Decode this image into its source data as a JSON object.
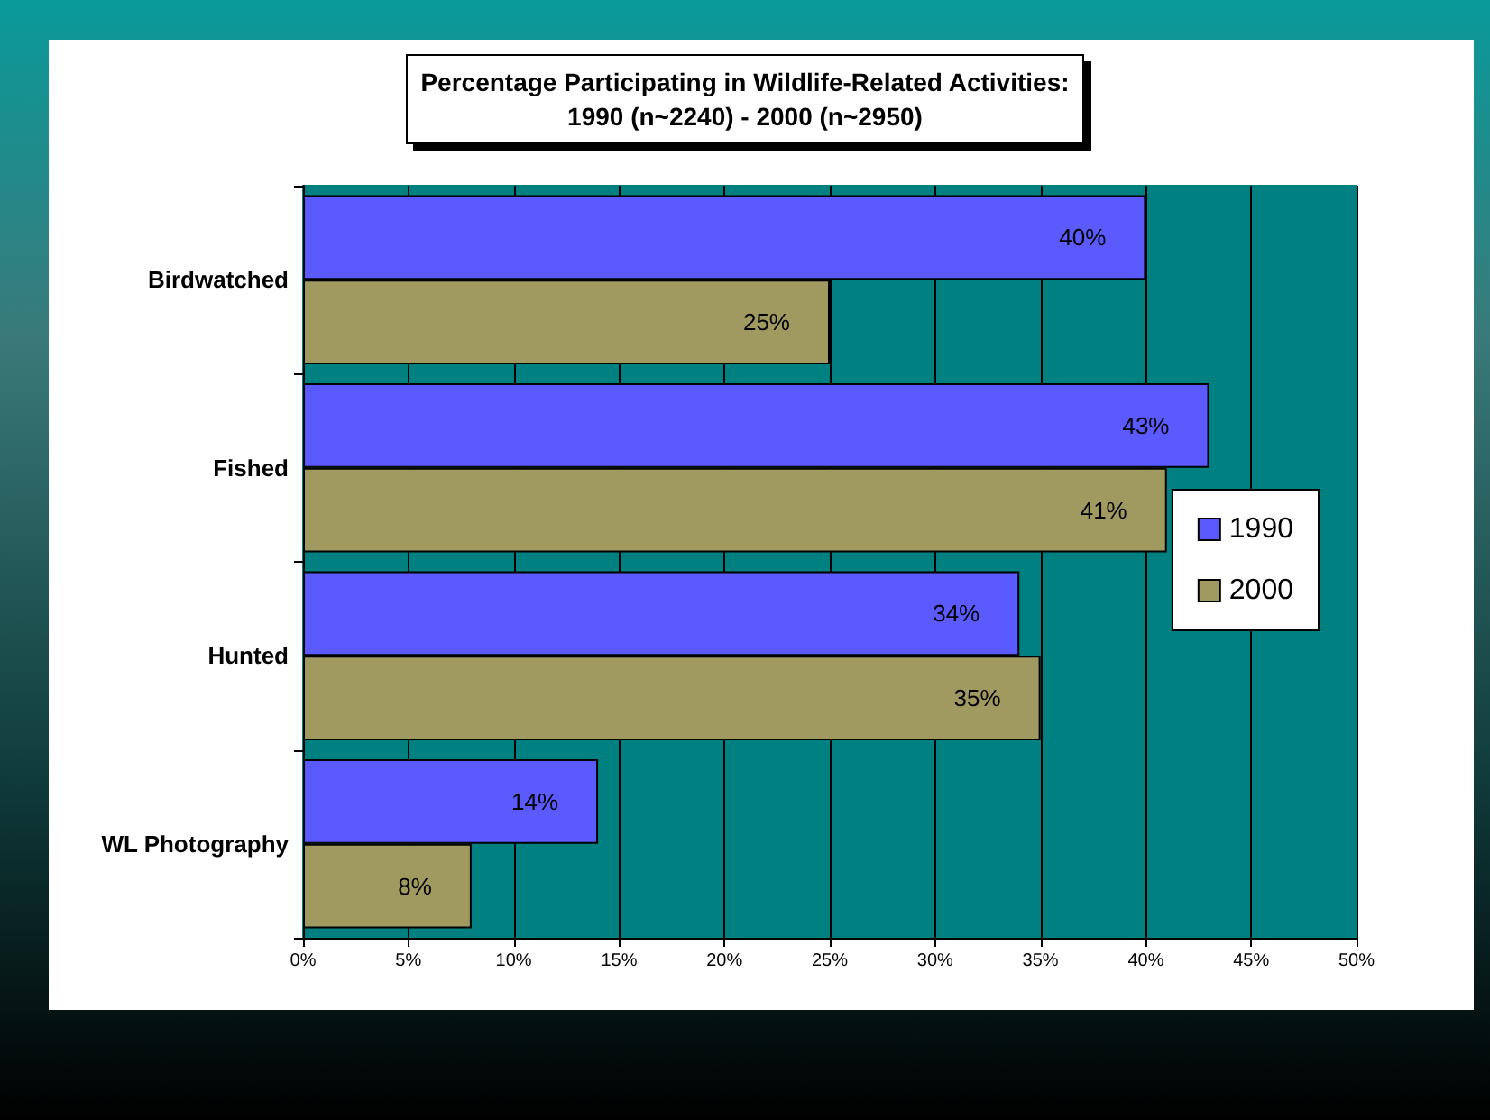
{
  "chart_data": {
    "type": "bar",
    "orientation": "horizontal",
    "title": "Percentage Participating in Wildlife-Related Activities:\n1990 (n~2240) - 2000 (n~2950)",
    "categories": [
      "Birdwatched",
      "Fished",
      "Hunted",
      "WL Photography"
    ],
    "series": [
      {
        "name": "1990",
        "color": "#5a5aff",
        "values": [
          40,
          43,
          34,
          14
        ],
        "value_labels": [
          "40%",
          "43%",
          "34%",
          "14%"
        ]
      },
      {
        "name": "2000",
        "color": "#a09a60",
        "values": [
          25,
          41,
          35,
          8
        ],
        "value_labels": [
          "25%",
          "41%",
          "35%",
          "8%"
        ]
      }
    ],
    "xlim": [
      0,
      50
    ],
    "xticks": [
      {
        "value": 0,
        "label": "0%"
      },
      {
        "value": 5,
        "label": "5%"
      },
      {
        "value": 10,
        "label": "10%"
      },
      {
        "value": 15,
        "label": "15%"
      },
      {
        "value": 20,
        "label": "20%"
      },
      {
        "value": 25,
        "label": "25%"
      },
      {
        "value": 30,
        "label": "30%"
      },
      {
        "value": 35,
        "label": "35%"
      },
      {
        "value": 40,
        "label": "40%"
      },
      {
        "value": 45,
        "label": "45%"
      },
      {
        "value": 50,
        "label": "50%"
      }
    ],
    "grid": "x",
    "legend": "right"
  }
}
